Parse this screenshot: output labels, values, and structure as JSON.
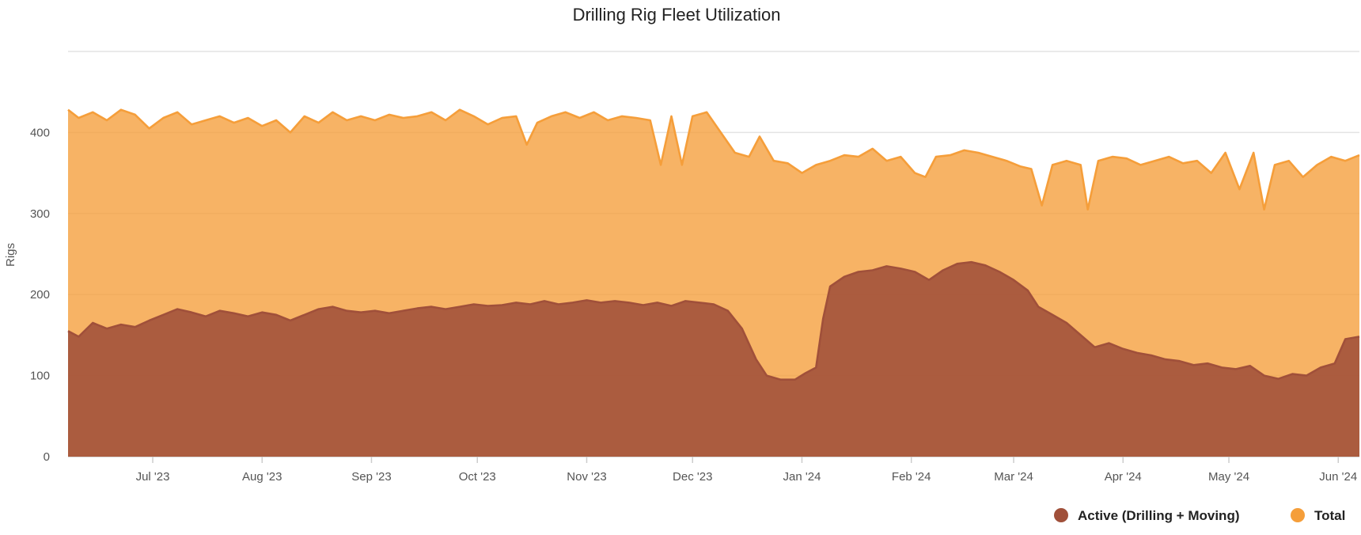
{
  "chart_data": {
    "type": "area",
    "title": "Drilling Rig Fleet Utilization",
    "ylabel": "Rigs",
    "xlabel": "",
    "ylim": [
      0,
      500
    ],
    "yticks": [
      0,
      100,
      200,
      300,
      400
    ],
    "x_range": [
      "2023-06-07",
      "2024-06-07"
    ],
    "xticks": [
      {
        "date": "2023-07-01",
        "label": "Jul '23"
      },
      {
        "date": "2023-08-01",
        "label": "Aug '23"
      },
      {
        "date": "2023-09-01",
        "label": "Sep '23"
      },
      {
        "date": "2023-10-01",
        "label": "Oct '23"
      },
      {
        "date": "2023-11-01",
        "label": "Nov '23"
      },
      {
        "date": "2023-12-01",
        "label": "Dec '23"
      },
      {
        "date": "2024-01-01",
        "label": "Jan '24"
      },
      {
        "date": "2024-02-01",
        "label": "Feb '24"
      },
      {
        "date": "2024-03-01",
        "label": "Mar '24"
      },
      {
        "date": "2024-04-01",
        "label": "Apr '24"
      },
      {
        "date": "2024-05-01",
        "label": "May '24"
      },
      {
        "date": "2024-06-01",
        "label": "Jun '24"
      }
    ],
    "grid": true,
    "legend_position": "bottom-right",
    "colors": {
      "active": "#A0503A",
      "total": "#F59E3A"
    },
    "series": [
      {
        "name": "Active (Drilling + Moving)",
        "key": "active",
        "points": [
          [
            "2023-06-07",
            155
          ],
          [
            "2023-06-10",
            148
          ],
          [
            "2023-06-14",
            165
          ],
          [
            "2023-06-18",
            158
          ],
          [
            "2023-06-22",
            163
          ],
          [
            "2023-06-26",
            160
          ],
          [
            "2023-06-30",
            168
          ],
          [
            "2023-07-04",
            175
          ],
          [
            "2023-07-08",
            182
          ],
          [
            "2023-07-12",
            178
          ],
          [
            "2023-07-16",
            173
          ],
          [
            "2023-07-20",
            180
          ],
          [
            "2023-07-24",
            177
          ],
          [
            "2023-07-28",
            173
          ],
          [
            "2023-08-01",
            178
          ],
          [
            "2023-08-05",
            175
          ],
          [
            "2023-08-09",
            168
          ],
          [
            "2023-08-13",
            175
          ],
          [
            "2023-08-17",
            182
          ],
          [
            "2023-08-21",
            185
          ],
          [
            "2023-08-25",
            180
          ],
          [
            "2023-08-29",
            178
          ],
          [
            "2023-09-02",
            180
          ],
          [
            "2023-09-06",
            177
          ],
          [
            "2023-09-10",
            180
          ],
          [
            "2023-09-14",
            183
          ],
          [
            "2023-09-18",
            185
          ],
          [
            "2023-09-22",
            182
          ],
          [
            "2023-09-26",
            185
          ],
          [
            "2023-09-30",
            188
          ],
          [
            "2023-10-04",
            186
          ],
          [
            "2023-10-08",
            187
          ],
          [
            "2023-10-12",
            190
          ],
          [
            "2023-10-16",
            188
          ],
          [
            "2023-10-20",
            192
          ],
          [
            "2023-10-24",
            188
          ],
          [
            "2023-10-28",
            190
          ],
          [
            "2023-11-01",
            193
          ],
          [
            "2023-11-05",
            190
          ],
          [
            "2023-11-09",
            192
          ],
          [
            "2023-11-13",
            190
          ],
          [
            "2023-11-17",
            187
          ],
          [
            "2023-11-21",
            190
          ],
          [
            "2023-11-25",
            186
          ],
          [
            "2023-11-29",
            192
          ],
          [
            "2023-12-03",
            190
          ],
          [
            "2023-12-07",
            188
          ],
          [
            "2023-12-11",
            180
          ],
          [
            "2023-12-15",
            158
          ],
          [
            "2023-12-19",
            120
          ],
          [
            "2023-12-22",
            100
          ],
          [
            "2023-12-26",
            95
          ],
          [
            "2023-12-30",
            95
          ],
          [
            "2024-01-02",
            103
          ],
          [
            "2024-01-05",
            110
          ],
          [
            "2024-01-07",
            170
          ],
          [
            "2024-01-09",
            210
          ],
          [
            "2024-01-13",
            222
          ],
          [
            "2024-01-17",
            228
          ],
          [
            "2024-01-21",
            230
          ],
          [
            "2024-01-25",
            235
          ],
          [
            "2024-01-29",
            232
          ],
          [
            "2024-02-02",
            228
          ],
          [
            "2024-02-06",
            218
          ],
          [
            "2024-02-10",
            230
          ],
          [
            "2024-02-14",
            238
          ],
          [
            "2024-02-18",
            240
          ],
          [
            "2024-02-22",
            236
          ],
          [
            "2024-02-26",
            228
          ],
          [
            "2024-03-01",
            218
          ],
          [
            "2024-03-05",
            205
          ],
          [
            "2024-03-08",
            185
          ],
          [
            "2024-03-12",
            175
          ],
          [
            "2024-03-16",
            165
          ],
          [
            "2024-03-20",
            150
          ],
          [
            "2024-03-24",
            135
          ],
          [
            "2024-03-28",
            140
          ],
          [
            "2024-04-01",
            133
          ],
          [
            "2024-04-05",
            128
          ],
          [
            "2024-04-09",
            125
          ],
          [
            "2024-04-13",
            120
          ],
          [
            "2024-04-17",
            118
          ],
          [
            "2024-04-21",
            113
          ],
          [
            "2024-04-25",
            115
          ],
          [
            "2024-04-29",
            110
          ],
          [
            "2024-05-03",
            108
          ],
          [
            "2024-05-07",
            112
          ],
          [
            "2024-05-11",
            100
          ],
          [
            "2024-05-15",
            96
          ],
          [
            "2024-05-19",
            102
          ],
          [
            "2024-05-23",
            100
          ],
          [
            "2024-05-27",
            110
          ],
          [
            "2024-05-31",
            115
          ],
          [
            "2024-06-03",
            145
          ],
          [
            "2024-06-07",
            148
          ]
        ]
      },
      {
        "name": "Total",
        "key": "total",
        "points": [
          [
            "2023-06-07",
            428
          ],
          [
            "2023-06-10",
            418
          ],
          [
            "2023-06-14",
            425
          ],
          [
            "2023-06-18",
            415
          ],
          [
            "2023-06-22",
            428
          ],
          [
            "2023-06-26",
            422
          ],
          [
            "2023-06-30",
            405
          ],
          [
            "2023-07-04",
            418
          ],
          [
            "2023-07-08",
            425
          ],
          [
            "2023-07-12",
            410
          ],
          [
            "2023-07-16",
            415
          ],
          [
            "2023-07-20",
            420
          ],
          [
            "2023-07-24",
            412
          ],
          [
            "2023-07-28",
            418
          ],
          [
            "2023-08-01",
            408
          ],
          [
            "2023-08-05",
            415
          ],
          [
            "2023-08-09",
            400
          ],
          [
            "2023-08-13",
            420
          ],
          [
            "2023-08-17",
            412
          ],
          [
            "2023-08-21",
            425
          ],
          [
            "2023-08-25",
            415
          ],
          [
            "2023-08-29",
            420
          ],
          [
            "2023-09-02",
            415
          ],
          [
            "2023-09-06",
            422
          ],
          [
            "2023-09-10",
            418
          ],
          [
            "2023-09-14",
            420
          ],
          [
            "2023-09-18",
            425
          ],
          [
            "2023-09-22",
            415
          ],
          [
            "2023-09-26",
            428
          ],
          [
            "2023-09-30",
            420
          ],
          [
            "2023-10-04",
            410
          ],
          [
            "2023-10-08",
            418
          ],
          [
            "2023-10-12",
            420
          ],
          [
            "2023-10-15",
            385
          ],
          [
            "2023-10-18",
            412
          ],
          [
            "2023-10-22",
            420
          ],
          [
            "2023-10-26",
            425
          ],
          [
            "2023-10-30",
            418
          ],
          [
            "2023-11-03",
            425
          ],
          [
            "2023-11-07",
            415
          ],
          [
            "2023-11-11",
            420
          ],
          [
            "2023-11-15",
            418
          ],
          [
            "2023-11-19",
            415
          ],
          [
            "2023-11-22",
            360
          ],
          [
            "2023-11-25",
            420
          ],
          [
            "2023-11-28",
            360
          ],
          [
            "2023-12-01",
            420
          ],
          [
            "2023-12-05",
            425
          ],
          [
            "2023-12-09",
            400
          ],
          [
            "2023-12-13",
            375
          ],
          [
            "2023-12-17",
            370
          ],
          [
            "2023-12-20",
            395
          ],
          [
            "2023-12-24",
            365
          ],
          [
            "2023-12-28",
            362
          ],
          [
            "2024-01-01",
            350
          ],
          [
            "2024-01-05",
            360
          ],
          [
            "2024-01-09",
            365
          ],
          [
            "2024-01-13",
            372
          ],
          [
            "2024-01-17",
            370
          ],
          [
            "2024-01-21",
            380
          ],
          [
            "2024-01-25",
            365
          ],
          [
            "2024-01-29",
            370
          ],
          [
            "2024-02-02",
            350
          ],
          [
            "2024-02-05",
            345
          ],
          [
            "2024-02-08",
            370
          ],
          [
            "2024-02-12",
            372
          ],
          [
            "2024-02-16",
            378
          ],
          [
            "2024-02-20",
            375
          ],
          [
            "2024-02-24",
            370
          ],
          [
            "2024-02-28",
            365
          ],
          [
            "2024-03-03",
            358
          ],
          [
            "2024-03-06",
            355
          ],
          [
            "2024-03-09",
            310
          ],
          [
            "2024-03-12",
            360
          ],
          [
            "2024-03-16",
            365
          ],
          [
            "2024-03-20",
            360
          ],
          [
            "2024-03-22",
            305
          ],
          [
            "2024-03-25",
            365
          ],
          [
            "2024-03-29",
            370
          ],
          [
            "2024-04-02",
            368
          ],
          [
            "2024-04-06",
            360
          ],
          [
            "2024-04-10",
            365
          ],
          [
            "2024-04-14",
            370
          ],
          [
            "2024-04-18",
            362
          ],
          [
            "2024-04-22",
            365
          ],
          [
            "2024-04-26",
            350
          ],
          [
            "2024-04-30",
            375
          ],
          [
            "2024-05-04",
            330
          ],
          [
            "2024-05-08",
            375
          ],
          [
            "2024-05-11",
            305
          ],
          [
            "2024-05-14",
            360
          ],
          [
            "2024-05-18",
            365
          ],
          [
            "2024-05-22",
            345
          ],
          [
            "2024-05-26",
            360
          ],
          [
            "2024-05-30",
            370
          ],
          [
            "2024-06-03",
            365
          ],
          [
            "2024-06-07",
            372
          ]
        ]
      }
    ]
  }
}
